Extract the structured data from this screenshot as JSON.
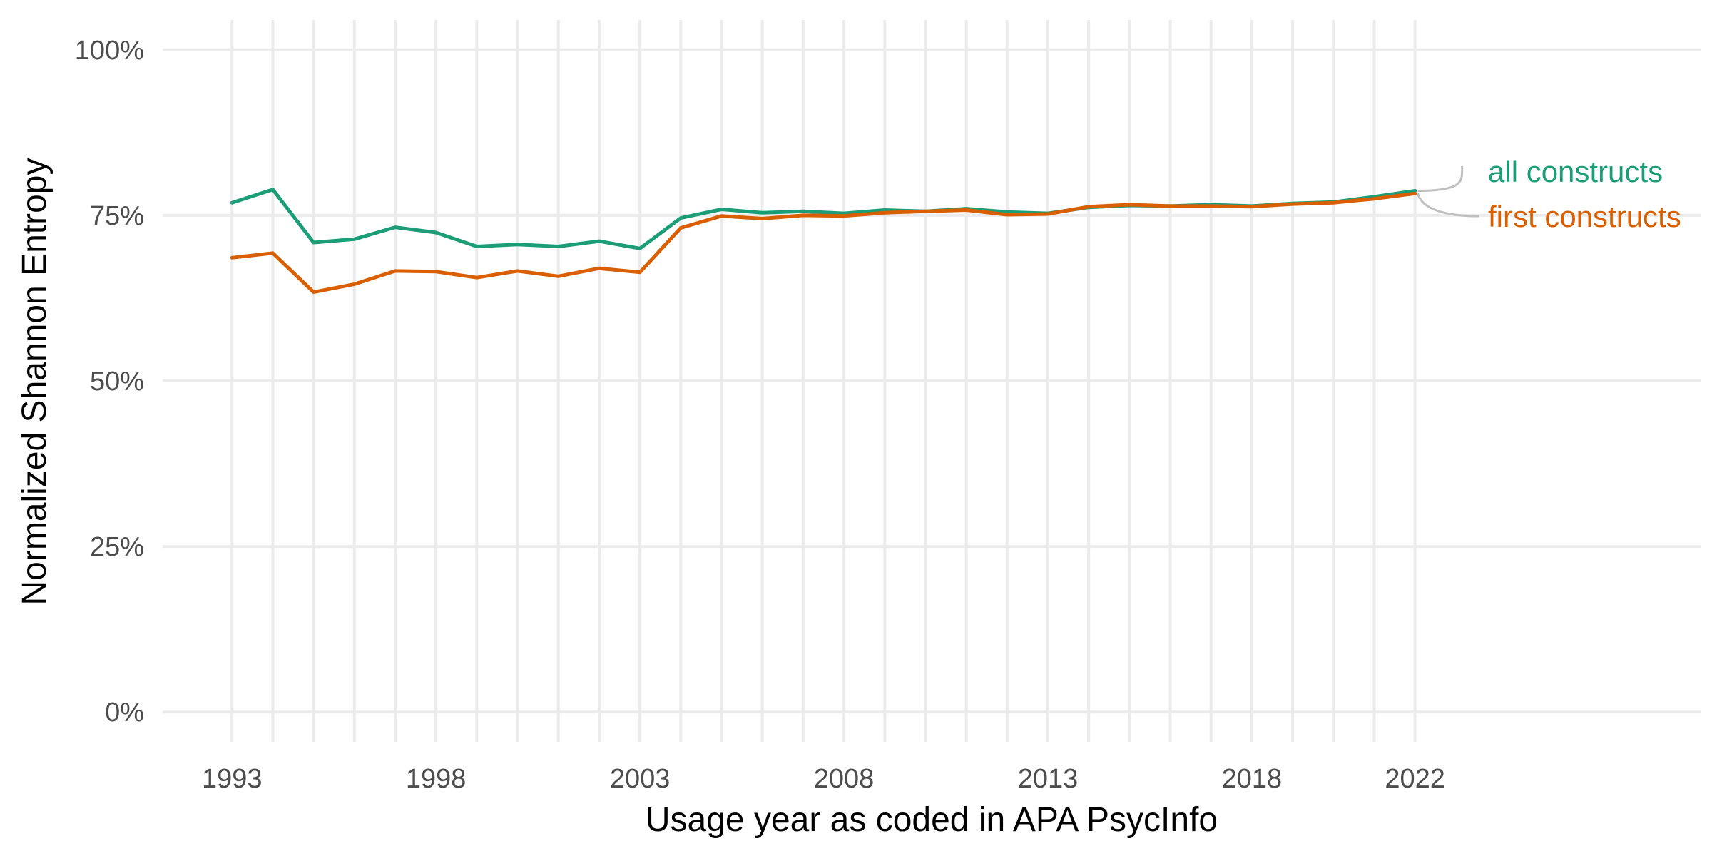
{
  "chart_data": {
    "type": "line",
    "title": "",
    "xlabel": "Usage year as coded in APA PsycInfo",
    "ylabel": "Normalized Shannon Entropy",
    "xlim": [
      1991.3,
      2029
    ],
    "ylim": [
      -0.045,
      1.045
    ],
    "x_ticks": [
      1993,
      1998,
      2003,
      2008,
      2013,
      2018,
      2022
    ],
    "x_tick_labels": [
      "1993",
      "1998",
      "2003",
      "2008",
      "2013",
      "2018",
      "2022"
    ],
    "x_gridlines": [
      1993,
      1994,
      1995,
      1996,
      1997,
      1998,
      1999,
      2000,
      2001,
      2002,
      2003,
      2004,
      2005,
      2006,
      2007,
      2008,
      2009,
      2010,
      2011,
      2012,
      2013,
      2014,
      2015,
      2016,
      2017,
      2018,
      2019,
      2020,
      2021,
      2022
    ],
    "y_ticks": [
      0,
      0.25,
      0.5,
      0.75,
      1.0
    ],
    "y_tick_labels": [
      "0%",
      "25%",
      "50%",
      "75%",
      "100%"
    ],
    "grid": true,
    "legend": "direct labels at right end of lines",
    "x": [
      1993,
      1994,
      1995,
      1996,
      1997,
      1998,
      1999,
      2000,
      2001,
      2002,
      2003,
      2004,
      2005,
      2006,
      2007,
      2008,
      2009,
      2010,
      2011,
      2012,
      2013,
      2014,
      2015,
      2016,
      2017,
      2018,
      2019,
      2020,
      2021,
      2022
    ],
    "series": [
      {
        "name": "all constructs",
        "color": "#1b9e77",
        "values": [
          0.769,
          0.789,
          0.709,
          0.714,
          0.732,
          0.724,
          0.703,
          0.706,
          0.703,
          0.711,
          0.7,
          0.746,
          0.759,
          0.754,
          0.756,
          0.753,
          0.758,
          0.756,
          0.76,
          0.755,
          0.753,
          0.762,
          0.765,
          0.764,
          0.766,
          0.764,
          0.768,
          0.77,
          0.778,
          0.787
        ]
      },
      {
        "name": "first constructs",
        "color": "#d95f02",
        "values": [
          0.686,
          0.693,
          0.634,
          0.646,
          0.666,
          0.665,
          0.656,
          0.666,
          0.658,
          0.67,
          0.664,
          0.731,
          0.749,
          0.745,
          0.75,
          0.749,
          0.754,
          0.756,
          0.758,
          0.751,
          0.752,
          0.763,
          0.766,
          0.764,
          0.764,
          0.763,
          0.767,
          0.769,
          0.775,
          0.783
        ]
      }
    ],
    "leader_line_color": "#bfbfbf",
    "grid_color": "#ebebeb"
  }
}
